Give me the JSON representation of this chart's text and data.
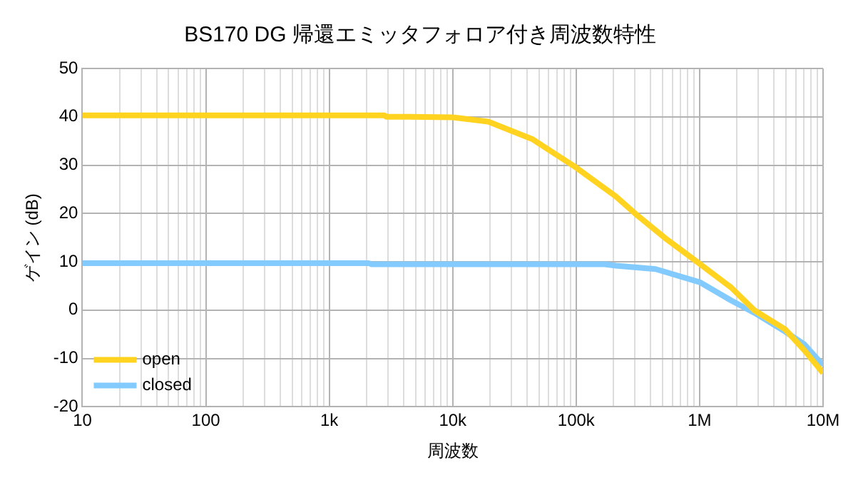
{
  "chart_data": {
    "type": "line",
    "title": "BS170 DG 帰還エミッタフォロア付き周波数特性",
    "xlabel": "周波数",
    "ylabel": "ゲイン (dB)",
    "log": "x",
    "grid": true,
    "legend": "bottom left",
    "marker": "none",
    "line_style": "solid",
    "xlim": [
      10,
      10000000
    ],
    "xticks": [
      {
        "value": 10,
        "label": "10"
      },
      {
        "value": 100,
        "label": "100"
      },
      {
        "value": 1000,
        "label": "1k"
      },
      {
        "value": 10000,
        "label": "10k"
      },
      {
        "value": 100000,
        "label": "100k"
      },
      {
        "value": 1000000,
        "label": "1M"
      },
      {
        "value": 10000000,
        "label": "10M"
      }
    ],
    "ylim": [
      -20,
      50
    ],
    "yticks": [
      -20,
      -10,
      0,
      10,
      20,
      30,
      40,
      50
    ],
    "series": [
      {
        "name": "open",
        "color": "#ffd320",
        "x": [
          10,
          2800,
          2900,
          4450,
          10000,
          19400,
          44000,
          100000,
          210000,
          300000,
          520000,
          1000000,
          1800000,
          2800000,
          4900000,
          7000000,
          10000000
        ],
        "values": [
          40.3,
          40.3,
          40,
          40,
          39.9,
          39,
          35.4,
          29.5,
          23.5,
          20,
          15,
          9.6,
          4.7,
          -0.1,
          -3.9,
          -8.2,
          -13
        ]
      },
      {
        "name": "closed",
        "color": "#83caff",
        "x": [
          10,
          2100,
          2200,
          170000,
          210000,
          440000,
          1000000,
          1800000,
          2800000,
          4900000,
          7000000,
          10000000
        ],
        "values": [
          9.7,
          9.7,
          9.5,
          9.5,
          9.2,
          8.5,
          5.8,
          2,
          -0.6,
          -4.4,
          -7,
          -11.4
        ]
      }
    ]
  }
}
